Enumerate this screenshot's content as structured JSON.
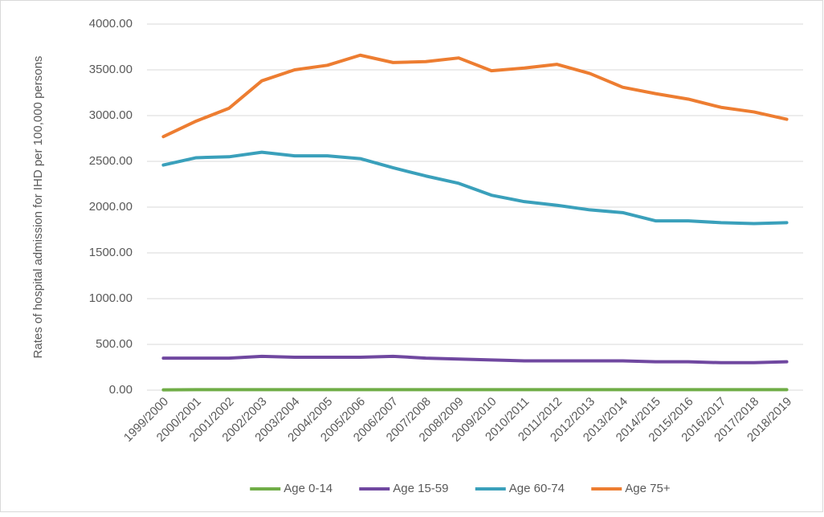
{
  "chart_data": {
    "type": "line",
    "ylabel": "Rates of hospital admission for IHD  per 100,000 persons",
    "categories": [
      "1999/2000",
      "2000/2001",
      "2001/2002",
      "2002/2003",
      "2003/2004",
      "2004/2005",
      "2005/2006",
      "2006/2007",
      "2007/2008",
      "2008/2009",
      "2009/2010",
      "2010/2011",
      "2011/2012",
      "2012/2013",
      "2013/2014",
      "2014/2015",
      "2015/2016",
      "2016/2017",
      "2017/2018",
      "2018/2019"
    ],
    "series": [
      {
        "name": "Age 0-14",
        "color": "#70ad47",
        "values": [
          3,
          5,
          5,
          5,
          5,
          5,
          5,
          5,
          5,
          5,
          5,
          5,
          5,
          5,
          5,
          5,
          5,
          5,
          5,
          5
        ]
      },
      {
        "name": "Age 15-59",
        "color": "#7048a0",
        "values": [
          350,
          350,
          350,
          370,
          360,
          360,
          360,
          370,
          350,
          340,
          330,
          320,
          320,
          320,
          320,
          310,
          310,
          300,
          300,
          310
        ]
      },
      {
        "name": "Age 60-74",
        "color": "#3aa0bb",
        "values": [
          2460,
          2540,
          2550,
          2600,
          2560,
          2560,
          2530,
          2430,
          2340,
          2260,
          2130,
          2060,
          2020,
          1970,
          1940,
          1850,
          1850,
          1830,
          1820,
          1830
        ]
      },
      {
        "name": "Age 75+",
        "color": "#ed7d31",
        "values": [
          2770,
          2940,
          3080,
          3380,
          3500,
          3550,
          3660,
          3580,
          3590,
          3630,
          3490,
          3520,
          3560,
          3460,
          3310,
          3240,
          3180,
          3090,
          3040,
          2960
        ]
      }
    ],
    "ylim": [
      0,
      4000
    ],
    "yticks": [
      {
        "value": 0,
        "label": "0.00"
      },
      {
        "value": 500,
        "label": "500.00"
      },
      {
        "value": 1000,
        "label": "1000.00"
      },
      {
        "value": 1500,
        "label": "1500.00"
      },
      {
        "value": 2000,
        "label": "2000.00"
      },
      {
        "value": 2500,
        "label": "2500.00"
      },
      {
        "value": 3000,
        "label": "3000.00"
      },
      {
        "value": 3500,
        "label": "3500.00"
      },
      {
        "value": 4000,
        "label": "4000.00"
      }
    ],
    "grid": true,
    "legend": "bottom"
  }
}
